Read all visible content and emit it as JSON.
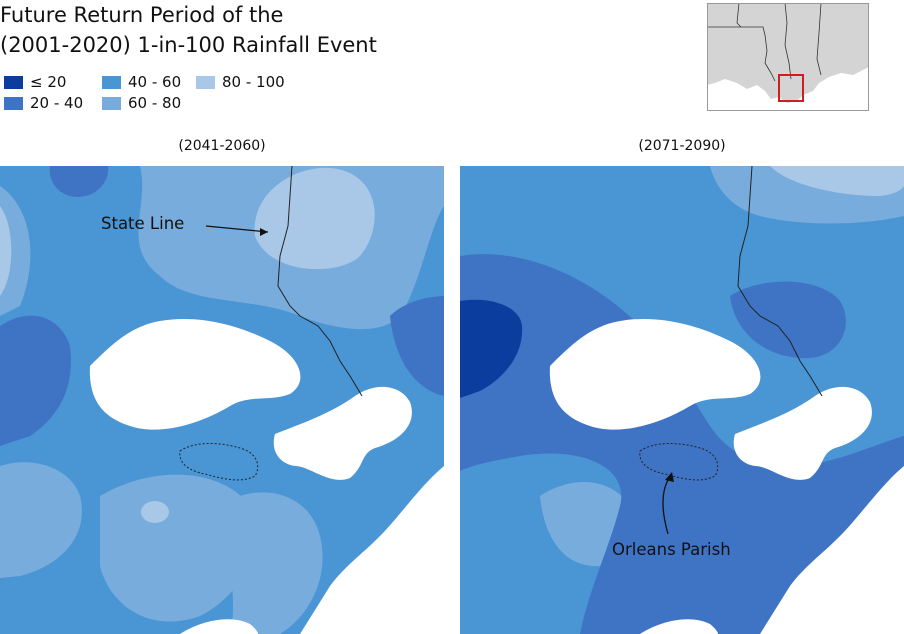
{
  "title_line1": "Future Return Period of the",
  "title_line2": "(2001-2020) 1-in-100 Rainfall Event",
  "legend": [
    {
      "label": "≤ 20",
      "color": "#0a3d9e"
    },
    {
      "label": "20 - 40",
      "color": "#3f73c4"
    },
    {
      "label": "40 - 60",
      "color": "#4a95d4"
    },
    {
      "label": "60 - 80",
      "color": "#78acdc"
    },
    {
      "label": "80 - 100",
      "color": "#a9c8e8"
    }
  ],
  "panels": [
    {
      "title": "(2041-2060)"
    },
    {
      "title": "(2071-2090)"
    }
  ],
  "annotations": {
    "state_line": "State Line",
    "orleans_parish": "Orleans Parish"
  },
  "inset": {
    "land_color": "#d4d4d4",
    "highlight_color": "#cc1f1f"
  }
}
